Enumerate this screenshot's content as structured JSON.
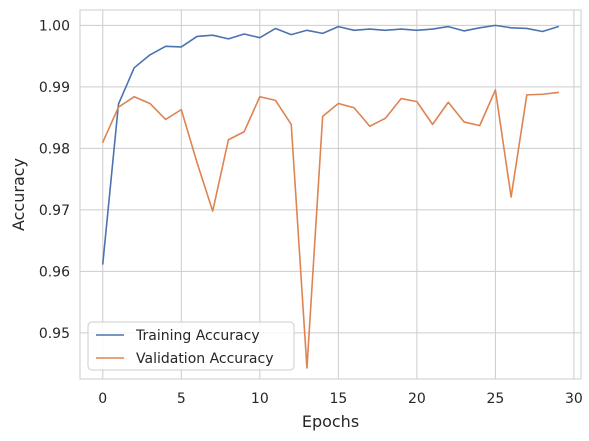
{
  "chart_data": {
    "type": "line",
    "title": "",
    "xlabel": "Epochs",
    "ylabel": "Accuracy",
    "xlim": [
      -1.45,
      30.45
    ],
    "ylim": [
      0.9425,
      1.0025
    ],
    "xticks": [
      0,
      5,
      10,
      15,
      20,
      25,
      30
    ],
    "xtick_labels": [
      "0",
      "5",
      "10",
      "15",
      "20",
      "25",
      "30"
    ],
    "yticks": [
      0.95,
      0.96,
      0.97,
      0.98,
      0.99,
      1.0
    ],
    "ytick_labels": [
      "0.95",
      "0.96",
      "0.97",
      "0.98",
      "0.99",
      "1.00"
    ],
    "grid": true,
    "legend_position": "lower-left",
    "x": [
      0,
      1,
      2,
      3,
      4,
      5,
      6,
      7,
      8,
      9,
      10,
      11,
      12,
      13,
      14,
      15,
      16,
      17,
      18,
      19,
      20,
      21,
      22,
      23,
      24,
      25,
      26,
      27,
      28,
      29
    ],
    "series": [
      {
        "name": "Training Accuracy",
        "color": "#4c72b0",
        "values": [
          0.9612,
          0.9872,
          0.9931,
          0.9952,
          0.9966,
          0.9965,
          0.9982,
          0.9984,
          0.9978,
          0.9986,
          0.998,
          0.9995,
          0.9985,
          0.9992,
          0.9987,
          0.9998,
          0.9992,
          0.9994,
          0.9992,
          0.9994,
          0.9992,
          0.9994,
          0.9998,
          0.9991,
          0.9996,
          1.0,
          0.9996,
          0.9995,
          0.999,
          0.9998
        ]
      },
      {
        "name": "Validation Accuracy",
        "color": "#dd8452",
        "values": [
          0.981,
          0.9867,
          0.9884,
          0.9873,
          0.9847,
          0.9863,
          0.9777,
          0.9698,
          0.9814,
          0.9827,
          0.9884,
          0.9878,
          0.9839,
          0.9443,
          0.9852,
          0.9873,
          0.9866,
          0.9836,
          0.9849,
          0.9881,
          0.9876,
          0.9839,
          0.9875,
          0.9843,
          0.9837,
          0.9895,
          0.9721,
          0.9887,
          0.9888,
          0.9891
        ]
      }
    ]
  }
}
